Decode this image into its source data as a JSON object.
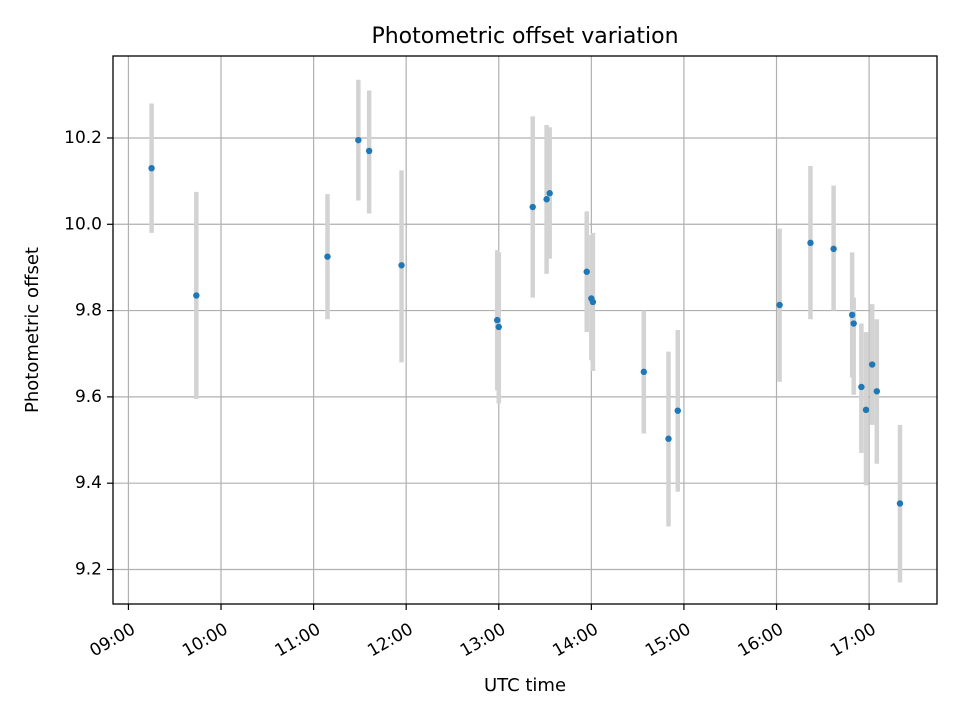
{
  "chart_data": {
    "type": "scatter",
    "title": "Photometric offset variation",
    "xlabel": "UTC time",
    "ylabel": "Photometric offset",
    "x_ticks": [
      "09:00",
      "10:00",
      "11:00",
      "12:00",
      "13:00",
      "14:00",
      "15:00",
      "16:00",
      "17:00"
    ],
    "y_ticks": [
      "9.2",
      "9.4",
      "9.6",
      "9.8",
      "10.0",
      "10.2"
    ],
    "xlim": [
      "08:50",
      "17:44"
    ],
    "ylim": [
      9.12,
      10.39
    ],
    "grid": true,
    "colors": {
      "points": "#1f77b4",
      "errorbars": "#d3d3d3"
    },
    "points": [
      {
        "x": "09:15",
        "y": 10.13,
        "ylow": 9.98,
        "yhigh": 10.28
      },
      {
        "x": "09:44",
        "y": 9.835,
        "ylow": 9.595,
        "yhigh": 10.075
      },
      {
        "x": "11:09",
        "y": 9.925,
        "ylow": 9.78,
        "yhigh": 10.07
      },
      {
        "x": "11:29",
        "y": 10.195,
        "ylow": 10.055,
        "yhigh": 10.335
      },
      {
        "x": "11:36",
        "y": 10.17,
        "ylow": 10.025,
        "yhigh": 10.31
      },
      {
        "x": "11:57",
        "y": 9.905,
        "ylow": 9.68,
        "yhigh": 10.125
      },
      {
        "x": "12:59",
        "y": 9.778,
        "ylow": 9.615,
        "yhigh": 9.94
      },
      {
        "x": "13:00",
        "y": 9.762,
        "ylow": 9.585,
        "yhigh": 9.935
      },
      {
        "x": "13:22",
        "y": 10.04,
        "ylow": 9.83,
        "yhigh": 10.25
      },
      {
        "x": "13:31",
        "y": 10.058,
        "ylow": 9.885,
        "yhigh": 10.23
      },
      {
        "x": "13:33",
        "y": 10.072,
        "ylow": 9.92,
        "yhigh": 10.225
      },
      {
        "x": "13:57",
        "y": 9.89,
        "ylow": 9.75,
        "yhigh": 10.03
      },
      {
        "x": "14:00",
        "y": 9.828,
        "ylow": 9.685,
        "yhigh": 9.975
      },
      {
        "x": "14:01",
        "y": 9.82,
        "ylow": 9.66,
        "yhigh": 9.98
      },
      {
        "x": "14:34",
        "y": 9.658,
        "ylow": 9.515,
        "yhigh": 9.8
      },
      {
        "x": "14:50",
        "y": 9.503,
        "ylow": 9.3,
        "yhigh": 9.705
      },
      {
        "x": "14:56",
        "y": 9.568,
        "ylow": 9.38,
        "yhigh": 9.755
      },
      {
        "x": "16:02",
        "y": 9.813,
        "ylow": 9.635,
        "yhigh": 9.99
      },
      {
        "x": "16:22",
        "y": 9.957,
        "ylow": 9.78,
        "yhigh": 10.135
      },
      {
        "x": "16:37",
        "y": 9.943,
        "ylow": 9.8,
        "yhigh": 10.09
      },
      {
        "x": "16:49",
        "y": 9.79,
        "ylow": 9.645,
        "yhigh": 9.935
      },
      {
        "x": "16:50",
        "y": 9.77,
        "ylow": 9.605,
        "yhigh": 9.83
      },
      {
        "x": "16:55",
        "y": 9.623,
        "ylow": 9.47,
        "yhigh": 9.77
      },
      {
        "x": "16:58",
        "y": 9.57,
        "ylow": 9.395,
        "yhigh": 9.75
      },
      {
        "x": "17:02",
        "y": 9.675,
        "ylow": 9.535,
        "yhigh": 9.815
      },
      {
        "x": "17:05",
        "y": 9.613,
        "ylow": 9.445,
        "yhigh": 9.78
      },
      {
        "x": "17:20",
        "y": 9.353,
        "ylow": 9.17,
        "yhigh": 9.535
      }
    ]
  }
}
